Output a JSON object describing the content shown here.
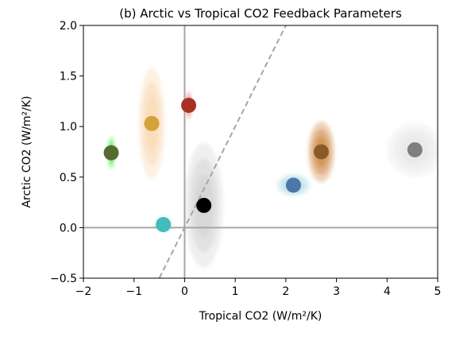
{
  "chart_data": {
    "type": "scatter",
    "title": "(b) Arctic vs Tropical CO2 Feedback Parameters",
    "xlabel": "Tropical CO2 (W/m²/K)",
    "ylabel": "Arctic CO2 (W/m²/K)",
    "xlim": [
      -2,
      5
    ],
    "ylim": [
      -0.5,
      2.0
    ],
    "xticks": [
      -2,
      -1,
      0,
      1,
      2,
      3,
      4,
      5
    ],
    "yticks": [
      -0.5,
      0.0,
      0.5,
      1.0,
      1.5,
      2.0
    ],
    "xtick_labels": [
      "−2",
      "−1",
      "0",
      "1",
      "2",
      "3",
      "4",
      "5"
    ],
    "ytick_labels": [
      "−0.5",
      "0.0",
      "0.5",
      "1.0",
      "1.5",
      "2.0"
    ],
    "grid": false,
    "reference_lines": {
      "x0": true,
      "y0": true
    },
    "one_to_one_line": true,
    "points": [
      {
        "x": -1.45,
        "y": 0.74,
        "color": "#556b2f",
        "cloud_color": "#22ee22",
        "sx": 0.07,
        "sy": 0.16
      },
      {
        "x": -0.65,
        "y": 1.03,
        "color": "#d4a239",
        "cloud_color": "#f9d8b0",
        "sx": 0.26,
        "sy": 0.55
      },
      {
        "x": 0.08,
        "y": 1.21,
        "color": "#a93226",
        "cloud_color": "#e8666a",
        "sx": 0.06,
        "sy": 0.14
      },
      {
        "x": 0.38,
        "y": 0.22,
        "color": "#000000",
        "cloud_color": "#d0d0d0",
        "sx": 0.38,
        "sy": 0.62
      },
      {
        "x": -0.42,
        "y": 0.03,
        "color": "#44bbbb",
        "cloud_color": "#bfeff0",
        "sx": 0.18,
        "sy": 0.09
      },
      {
        "x": 2.15,
        "y": 0.42,
        "color": "#4b77a9",
        "cloud_color": "#a8d8e6",
        "sx": 0.33,
        "sy": 0.11
      },
      {
        "x": 2.7,
        "y": 0.75,
        "color": "#8b5a2b",
        "cloud_color": "#cd853f",
        "sx": 0.26,
        "sy": 0.3
      },
      {
        "x": 4.55,
        "y": 0.77,
        "color": "#7f7f7f",
        "cloud_color": "#e6e6e6",
        "sx": 0.55,
        "sy": 0.27
      }
    ]
  }
}
